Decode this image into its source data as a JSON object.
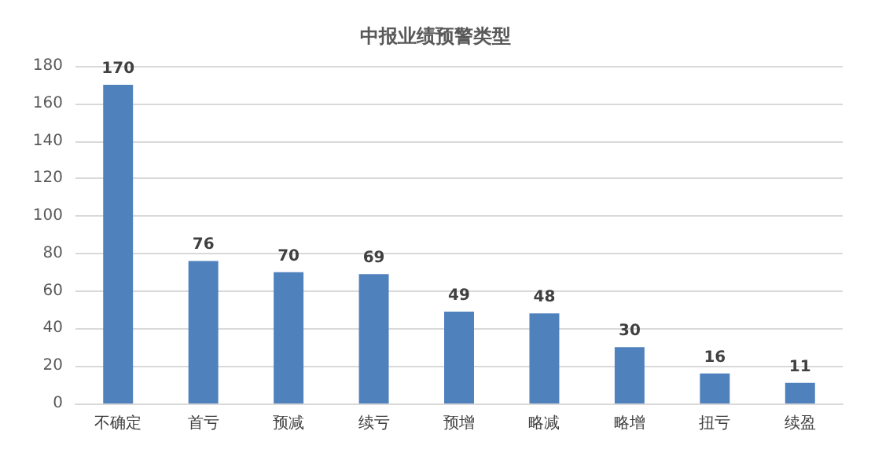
{
  "chart_data": {
    "type": "bar",
    "title": "中报业绩预警类型",
    "categories": [
      "不确定",
      "首亏",
      "预减",
      "续亏",
      "预增",
      "略减",
      "略增",
      "扭亏",
      "续盈"
    ],
    "values": [
      170,
      76,
      70,
      69,
      49,
      48,
      30,
      16,
      11
    ],
    "color": "#4f81bd",
    "ylim": [
      0,
      180
    ],
    "yticks": [
      0,
      20,
      40,
      60,
      80,
      100,
      120,
      140,
      160,
      180
    ],
    "grid": "y",
    "data_labels": true
  }
}
